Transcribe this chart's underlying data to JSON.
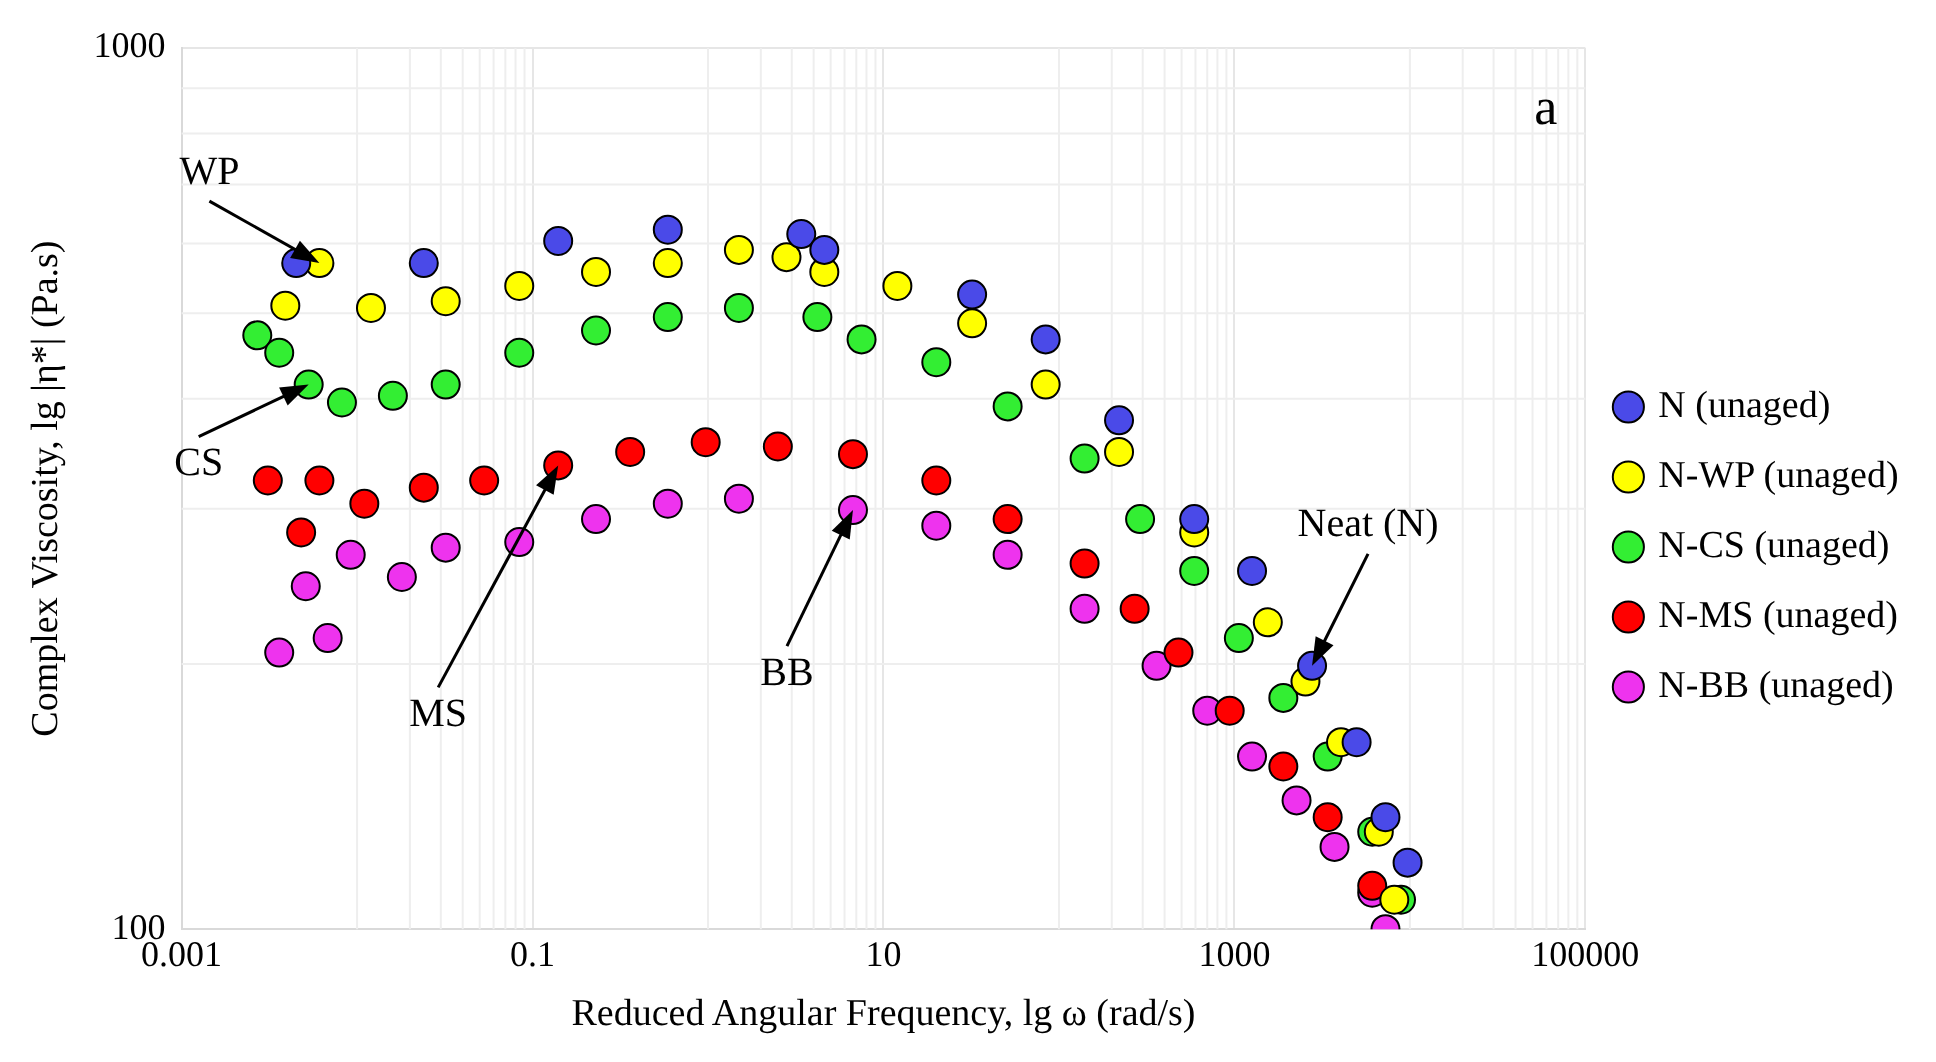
{
  "chart_data": {
    "type": "scatter",
    "xlabel": "Reduced Angular Frequency, lg ω (rad/s)",
    "ylabel": "Complex Viscosity, lg |η*| (Pa.s)",
    "log": "xy",
    "xlim": [
      0.001,
      100000
    ],
    "xticks": [
      0.001,
      0.1,
      10,
      1000,
      100000
    ],
    "ylim": [
      100,
      1000
    ],
    "yticks": [
      100,
      1000
    ],
    "grid": true,
    "legend": "right",
    "marker": "circle",
    "annotations": [
      {
        "text": "WP",
        "x": 0.0061,
        "y": 570
      },
      {
        "text": "CS",
        "x": 0.0053,
        "y": 415
      },
      {
        "text": "MS",
        "x": 0.14,
        "y": 336
      },
      {
        "text": "BB",
        "x": 6.7,
        "y": 299
      },
      {
        "text": "Neat (N)",
        "x": 2770,
        "y": 199
      },
      "a"
    ],
    "series": [
      {
        "name": "N (unaged)",
        "color": "#4a4ae8",
        "x": [
          0.0045,
          0.024,
          0.14,
          0.59,
          3.4,
          4.6,
          32,
          84,
          220,
          590,
          1260,
          2770,
          4970,
          7260,
          9700
        ],
        "values": [
          570,
          570,
          604,
          622,
          615,
          590,
          525,
          467,
          378,
          292,
          255,
          199,
          163,
          134,
          119
        ]
      },
      {
        "name": "N-WP (unaged)",
        "color": "#ffff00",
        "x": [
          0.0039,
          0.0061,
          0.012,
          0.032,
          0.084,
          0.23,
          0.59,
          1.5,
          2.8,
          4.6,
          12,
          32,
          84,
          220,
          590,
          1550,
          2540,
          4050,
          6650,
          8150
        ],
        "values": [
          510,
          570,
          507,
          516,
          537,
          557,
          570,
          590,
          579,
          557,
          537,
          487,
          415,
          348,
          282,
          223,
          191,
          163,
          129,
          108
        ]
      },
      {
        "name": "N-CS (unaged)",
        "color": "#33ee33",
        "x": [
          0.0027,
          0.0036,
          0.0053,
          0.0082,
          0.016,
          0.032,
          0.084,
          0.23,
          0.59,
          1.5,
          4.2,
          7.5,
          20,
          51,
          140,
          290,
          590,
          1060,
          1900,
          3400,
          6100,
          8900
        ],
        "values": [
          472,
          451,
          415,
          396,
          403,
          415,
          451,
          478,
          495,
          507,
          495,
          467,
          440,
          392,
          342,
          292,
          255,
          214,
          183,
          157,
          129,
          108
        ]
      },
      {
        "name": "N-MS (unaged)",
        "color": "#ff0000",
        "x": [
          0.0031,
          0.0048,
          0.0061,
          0.011,
          0.024,
          0.053,
          0.14,
          0.36,
          0.97,
          2.5,
          6.7,
          20,
          51,
          140,
          270,
          480,
          940,
          1900,
          3400,
          6100
        ],
        "values": [
          323,
          282,
          323,
          304,
          317,
          323,
          336,
          348,
          357,
          353,
          346,
          323,
          292,
          260,
          231,
          206,
          177,
          153,
          134,
          112
        ]
      },
      {
        "name": "N-BB (unaged)",
        "color": "#ee33ee",
        "x": [
          0.0036,
          0.0051,
          0.0068,
          0.0092,
          0.018,
          0.032,
          0.084,
          0.23,
          0.59,
          1.5,
          6.7,
          20,
          51,
          140,
          360,
          700,
          1260,
          2260,
          3720,
          6100,
          7260
        ],
        "values": [
          206,
          245,
          214,
          266,
          251,
          271,
          275,
          292,
          304,
          308,
          299,
          287,
          266,
          231,
          199,
          177,
          157,
          140,
          124,
          110,
          100
        ]
      }
    ]
  }
}
